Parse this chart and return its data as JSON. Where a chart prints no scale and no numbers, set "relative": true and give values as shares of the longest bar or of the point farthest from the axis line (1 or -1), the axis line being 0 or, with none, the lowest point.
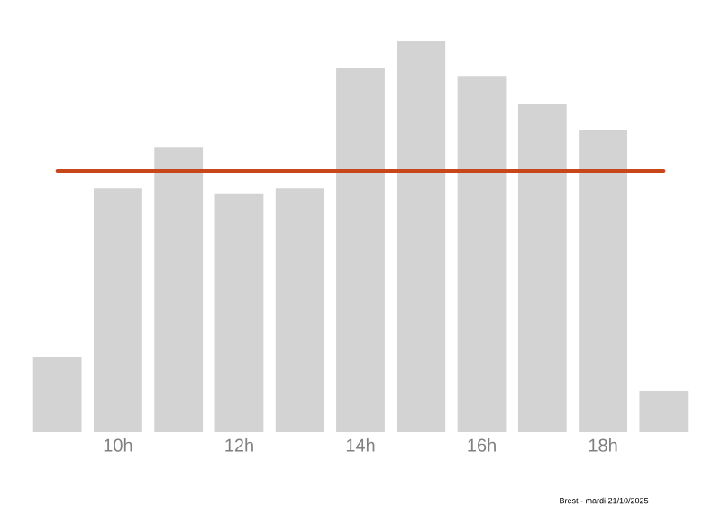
{
  "chart_data": {
    "type": "bar",
    "relative": true,
    "categories": [
      null,
      "10h",
      null,
      "12h",
      null,
      "14h",
      null,
      "16h",
      null,
      "18h",
      null
    ],
    "values": [
      0.192,
      0.624,
      0.73,
      0.611,
      0.624,
      0.932,
      1,
      0.912,
      0.839,
      0.774,
      0.106
    ],
    "color": "#d3d3d3",
    "ref_lines": [
      {
        "axis": "y",
        "value": 0.668,
        "color": "#c8471a"
      }
    ],
    "annotations": [
      "Brest - mardi 21/10/2025"
    ]
  }
}
